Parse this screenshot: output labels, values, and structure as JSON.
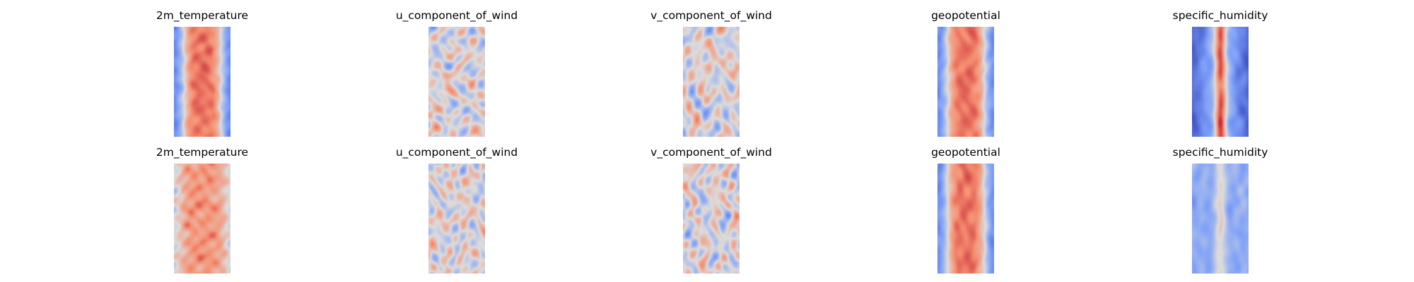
{
  "chart_data": [
    {
      "type": "heatmap",
      "title": "2m_temperature",
      "row": 1,
      "pattern": "warm-band",
      "colormap": "coolwarm"
    },
    {
      "type": "heatmap",
      "title": "u_component_of_wind",
      "row": 1,
      "pattern": "noisy-mixed",
      "colormap": "coolwarm"
    },
    {
      "type": "heatmap",
      "title": "v_component_of_wind",
      "row": 1,
      "pattern": "noisy-mixed",
      "colormap": "coolwarm"
    },
    {
      "type": "heatmap",
      "title": "geopotential",
      "row": 1,
      "pattern": "warm-band",
      "colormap": "coolwarm"
    },
    {
      "type": "heatmap",
      "title": "specific_humidity",
      "row": 1,
      "pattern": "narrow-warm-core-cold-edges",
      "colormap": "coolwarm"
    },
    {
      "type": "heatmap",
      "title": "2m_temperature",
      "row": 2,
      "pattern": "warm-noisy",
      "colormap": "coolwarm"
    },
    {
      "type": "heatmap",
      "title": "u_component_of_wind",
      "row": 2,
      "pattern": "noisy-mixed",
      "colormap": "coolwarm"
    },
    {
      "type": "heatmap",
      "title": "v_component_of_wind",
      "row": 2,
      "pattern": "noisy-mixed",
      "colormap": "coolwarm"
    },
    {
      "type": "heatmap",
      "title": "geopotential",
      "row": 2,
      "pattern": "warm-band",
      "colormap": "coolwarm"
    },
    {
      "type": "heatmap",
      "title": "specific_humidity",
      "row": 2,
      "pattern": "cool-with-faint-core",
      "colormap": "coolwarm"
    }
  ]
}
